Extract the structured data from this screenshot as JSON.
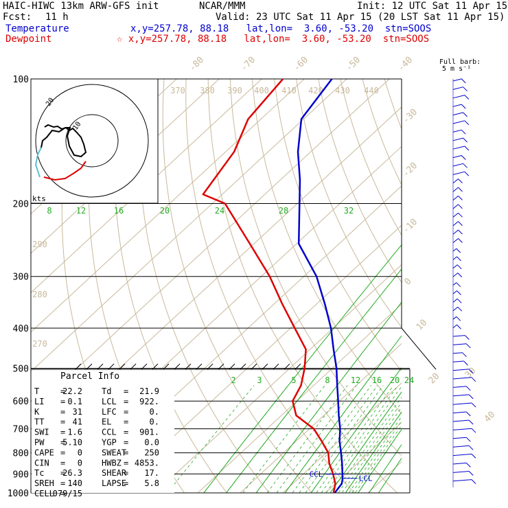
{
  "header": {
    "model": "HAIC-HIWC 13km ARW-GFS init",
    "org": "NCAR/MMM",
    "init": "Init: 12 UTC Sat 11 Apr 15",
    "fcst_label": "Fcst:",
    "fcst_value": "11 h",
    "valid": "Valid: 23 UTC Sat 11 Apr 15 (20 LST Sat 11 Apr 15)",
    "temp_label": "Temperature",
    "temp_loc": "x,y=257.78, 88.18   lat,lon=  3.60, -53.20  stn=SOOS",
    "dew_label": "Dewpoint",
    "dew_loc": "☆ x,y=257.78, 88.18   lat,lon=  3.60, -53.20  stn=SOOS",
    "temp_color": "#0000cc",
    "dew_color": "#dd0000"
  },
  "barb_label": "Full barb:",
  "barb_units": "5 m s⁻¹",
  "hodo_units": "kts",
  "hodo_labels": [
    "20",
    "10"
  ],
  "parcel": {
    "title": "Parcel Info",
    "rows": [
      [
        "T",
        "=",
        "22.2",
        "Td",
        "=",
        "21.9"
      ],
      [
        "LI",
        "=",
        "0.1",
        "LCL",
        "=",
        "922."
      ],
      [
        "K",
        "=",
        "31",
        "LFC",
        "=",
        "0."
      ],
      [
        "TT",
        "=",
        "41",
        "EL",
        "=",
        "0."
      ],
      [
        "SWI",
        "=",
        "1.6",
        "CCL",
        "=",
        "901."
      ],
      [
        "PW",
        "=",
        "5.10",
        "YGP",
        "=",
        "0.0"
      ],
      [
        "CAPE",
        "=",
        "0",
        "SWEAT",
        "=",
        "250"
      ],
      [
        "CIN",
        "=",
        "0",
        "HWBZ",
        "=",
        "4853."
      ],
      [
        "Tc",
        "=",
        "26.3",
        "SHEAR",
        "=",
        "17."
      ],
      [
        "SREH",
        "=",
        "140",
        "LAPSE",
        "=",
        "5.8"
      ],
      [
        "CELL",
        "=",
        "079/15",
        "",
        "",
        ""
      ]
    ]
  },
  "markers": {
    "ccl": "CCL",
    "lcl": "LCL"
  },
  "chart_data": {
    "type": "line",
    "title": "HAIC-HIWC 13km ARW-GFS init",
    "y_axis": {
      "label": "",
      "scale": "log",
      "units": "hPa",
      "range": [
        1000,
        100
      ],
      "ticks": [
        100,
        200,
        300,
        400,
        500,
        600,
        700,
        800,
        900,
        1000
      ]
    },
    "isotherm_labels": [
      "-80",
      "-70",
      "-60",
      "-50",
      "-40",
      "-30",
      "-20",
      "-10",
      "0",
      "10",
      "20",
      "30",
      "40"
    ],
    "theta_labels": [
      "370",
      "380",
      "390",
      "400",
      "410",
      "420",
      "430",
      "440"
    ],
    "theta_left_labels": [
      "290",
      "280",
      "270"
    ],
    "mixing_ratio_labels_upper": [
      "8",
      "12",
      "16",
      "20",
      "24",
      "28",
      "32"
    ],
    "mixing_ratio_labels_lower": [
      "2",
      "3",
      "5",
      "8",
      "12",
      "16",
      "20",
      "24"
    ],
    "series": [
      {
        "name": "Temperature",
        "color": "#0000cc",
        "units": "C",
        "points": [
          [
            1000,
            22.2
          ],
          [
            950,
            21.5
          ],
          [
            925,
            20.5
          ],
          [
            900,
            19.2
          ],
          [
            850,
            16.5
          ],
          [
            800,
            13.5
          ],
          [
            750,
            10.2
          ],
          [
            700,
            7.2
          ],
          [
            650,
            3.5
          ],
          [
            600,
            -0.3
          ],
          [
            550,
            -4.5
          ],
          [
            500,
            -9.0
          ],
          [
            450,
            -14.5
          ],
          [
            400,
            -20.5
          ],
          [
            350,
            -28.0
          ],
          [
            300,
            -37.0
          ],
          [
            250,
            -49.5
          ],
          [
            200,
            -59.5
          ],
          [
            175,
            -65.5
          ],
          [
            150,
            -73.0
          ],
          [
            125,
            -80.5
          ],
          [
            100,
            -83.5
          ]
        ]
      },
      {
        "name": "Dewpoint",
        "color": "#dd0000",
        "units": "C",
        "points": [
          [
            1000,
            21.9
          ],
          [
            950,
            20.0
          ],
          [
            900,
            17.0
          ],
          [
            850,
            13.5
          ],
          [
            800,
            10.5
          ],
          [
            750,
            6.0
          ],
          [
            700,
            1.0
          ],
          [
            650,
            -6.5
          ],
          [
            600,
            -11.0
          ],
          [
            550,
            -13.0
          ],
          [
            500,
            -16.5
          ],
          [
            450,
            -21.0
          ],
          [
            400,
            -29.0
          ],
          [
            350,
            -38.0
          ],
          [
            300,
            -48.0
          ],
          [
            250,
            -61.0
          ],
          [
            200,
            -77.0
          ],
          [
            190,
            -84.5
          ],
          [
            150,
            -88.0
          ],
          [
            125,
            -93.0
          ],
          [
            100,
            -95.0
          ]
        ]
      }
    ],
    "hodograph": {
      "rings_kts": [
        10,
        20
      ]
    },
    "grid": true
  }
}
